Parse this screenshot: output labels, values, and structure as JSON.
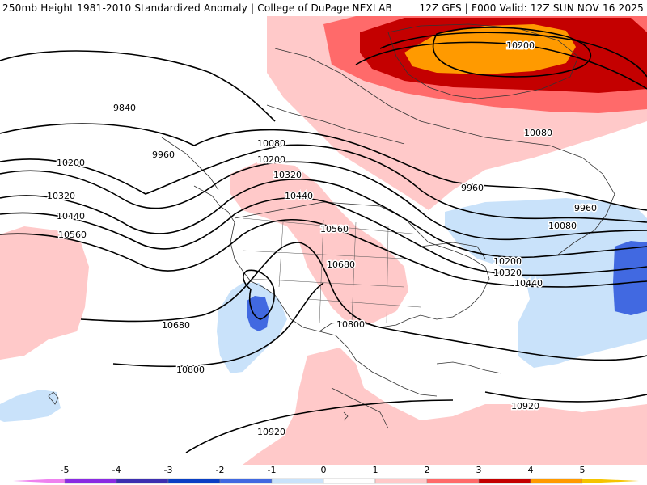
{
  "header": {
    "left_title": "250mb Height 1981-2010 Standardized Anomaly | College of DuPage NEXLAB",
    "right_title": "12Z GFS | F000 Valid: 12Z SUN NOV 16 2025"
  },
  "colorbar": {
    "ticks": [
      "-5",
      "-4",
      "-3",
      "-2",
      "-1",
      "0",
      "1",
      "2",
      "3",
      "4",
      "5"
    ],
    "colors": [
      "#ee82ee",
      "#8a2be2",
      "#3c2fb0",
      "#0a3fc4",
      "#4169e1",
      "#c9e2fa",
      "#ffffff",
      "#ffc9c9",
      "#ff6a6a",
      "#c40000",
      "#ff9a00",
      "#f5c400"
    ]
  },
  "contour_labels": [
    "9840",
    "9960",
    "10080",
    "10200",
    "10320",
    "10440",
    "10560",
    "10680",
    "10800",
    "10920"
  ],
  "map_labels": [
    "9840",
    "9960",
    "10200",
    "10080",
    "10200",
    "10320",
    "10440",
    "10320",
    "10440",
    "10560",
    "10560",
    "10680",
    "10680",
    "10800",
    "10800",
    "10920",
    "10920",
    "10200",
    "10080",
    "9960",
    "9960",
    "10080",
    "10200",
    "10320",
    "10440"
  ]
}
